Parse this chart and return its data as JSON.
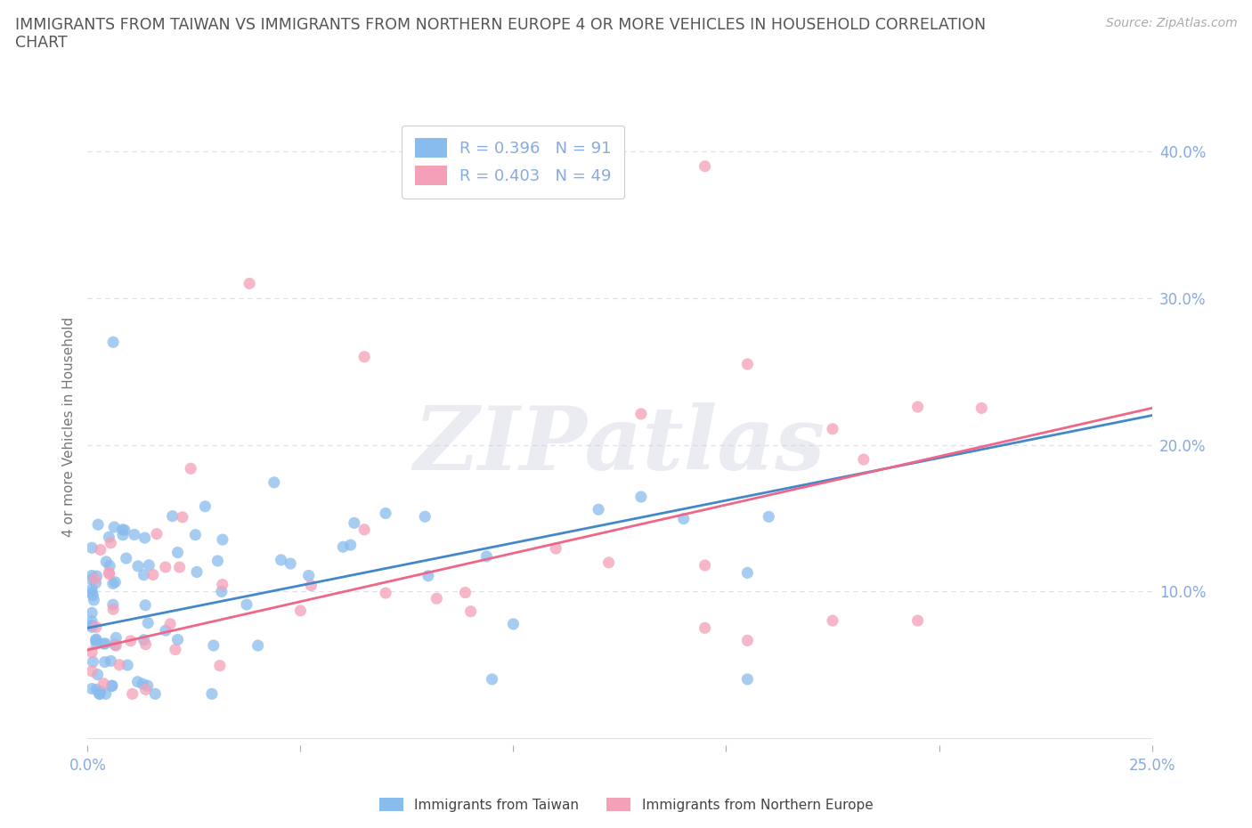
{
  "title_line1": "IMMIGRANTS FROM TAIWAN VS IMMIGRANTS FROM NORTHERN EUROPE 4 OR MORE VEHICLES IN HOUSEHOLD CORRELATION",
  "title_line2": "CHART",
  "source": "Source: ZipAtlas.com",
  "ylabel": "4 or more Vehicles in Household",
  "xlim": [
    0.0,
    0.25
  ],
  "ylim": [
    -0.005,
    0.43
  ],
  "yticks": [
    0.0,
    0.1,
    0.2,
    0.3,
    0.4
  ],
  "ytick_labels": [
    "",
    "10.0%",
    "20.0%",
    "30.0%",
    "40.0%"
  ],
  "taiwan_R": 0.396,
  "taiwan_N": 91,
  "northern_R": 0.403,
  "northern_N": 49,
  "taiwan_color": "#88bbee",
  "northern_color": "#f4a0b8",
  "taiwan_line_color": "#4488cc",
  "northern_line_color": "#ee6688",
  "watermark_text": "ZIPatlas",
  "background_color": "#ffffff",
  "grid_color": "#ddddee",
  "title_color": "#555555",
  "axis_label_color": "#88aadd",
  "source_color": "#aaaaaa",
  "bottom_legend_color": "#444444",
  "tw_line_intercept": 0.075,
  "tw_line_slope": 0.58,
  "ne_line_intercept": 0.06,
  "ne_line_slope": 0.66
}
